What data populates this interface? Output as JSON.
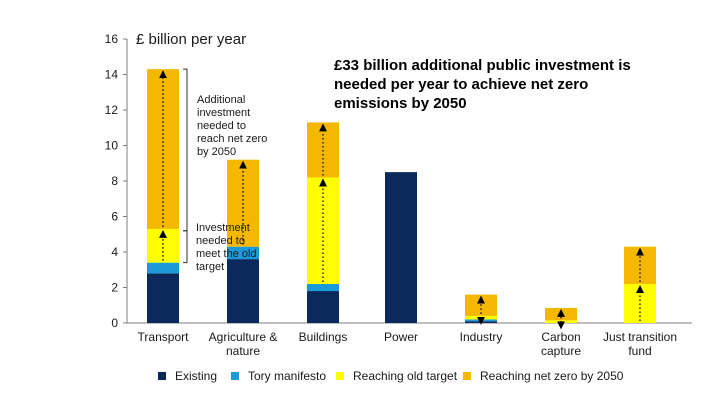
{
  "headline": {
    "lines": [
      "£33 billion additional public investment is",
      "needed per year to achieve net zero",
      "emissions by 2050"
    ]
  },
  "annotations": {
    "additional_investment": [
      "Additional",
      "investment",
      "needed to",
      "reach net zero",
      "by 2050"
    ],
    "old_target": [
      "Investment",
      "needed to",
      "meet the old",
      "target"
    ]
  },
  "chart_data": {
    "type": "bar",
    "stacked": true,
    "ylabel": "£ billion per year",
    "ylim": [
      0,
      16
    ],
    "yticks": [
      0,
      2,
      4,
      6,
      8,
      10,
      12,
      14,
      16
    ],
    "grid": false,
    "legend_position": "bottom",
    "categories": [
      [
        "Transport"
      ],
      [
        "Agriculture &",
        "nature"
      ],
      [
        "Buildings"
      ],
      [
        "Power"
      ],
      [
        "Industry"
      ],
      [
        "Carbon",
        "capture"
      ],
      [
        "Just transition",
        "fund"
      ]
    ],
    "series": [
      {
        "name": "Existing",
        "color": "#0b2a5b",
        "values": [
          2.8,
          3.6,
          1.8,
          8.5,
          0.1,
          0.0,
          0.0
        ]
      },
      {
        "name": "Tory manifesto",
        "color": "#1a9ad6",
        "values": [
          0.6,
          0.7,
          0.4,
          0.0,
          0.1,
          0.0,
          0.0
        ]
      },
      {
        "name": "Reaching old target",
        "color": "#ffff00",
        "values": [
          1.9,
          0.0,
          6.0,
          0.0,
          0.2,
          0.15,
          2.2
        ]
      },
      {
        "name": "Reaching net zero by 2050",
        "color": "#f5b800",
        "values": [
          9.0,
          4.9,
          3.1,
          0.0,
          1.2,
          0.7,
          2.1
        ]
      }
    ]
  }
}
